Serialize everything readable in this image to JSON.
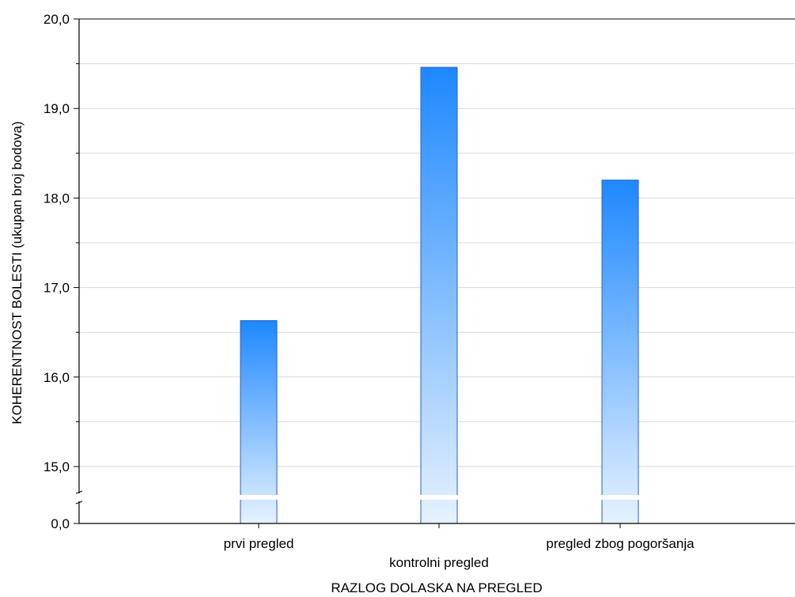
{
  "chart_data": {
    "type": "bar",
    "title": "",
    "xlabel": "RAZLOG DOLASKA NA PREGLED",
    "ylabel": "KOHERENTNOST BOLESTI (ukupan broj bodova)",
    "categories": [
      "prvi pregled",
      "kontrolni pregled",
      "pregled zbog pogoršanja"
    ],
    "values": [
      16.63,
      19.46,
      18.2
    ],
    "ylim": [
      0,
      20
    ],
    "axis_break": [
      0,
      14.7
    ],
    "y_ticks": [
      "0,0",
      "15,0",
      "16,0",
      "17,0",
      "18,0",
      "19,0",
      "20,0"
    ],
    "grid": true,
    "bar_colors": {
      "top": "#1e88ff",
      "bottom": "#e6f2ff",
      "border": "#2a5fc4"
    }
  }
}
